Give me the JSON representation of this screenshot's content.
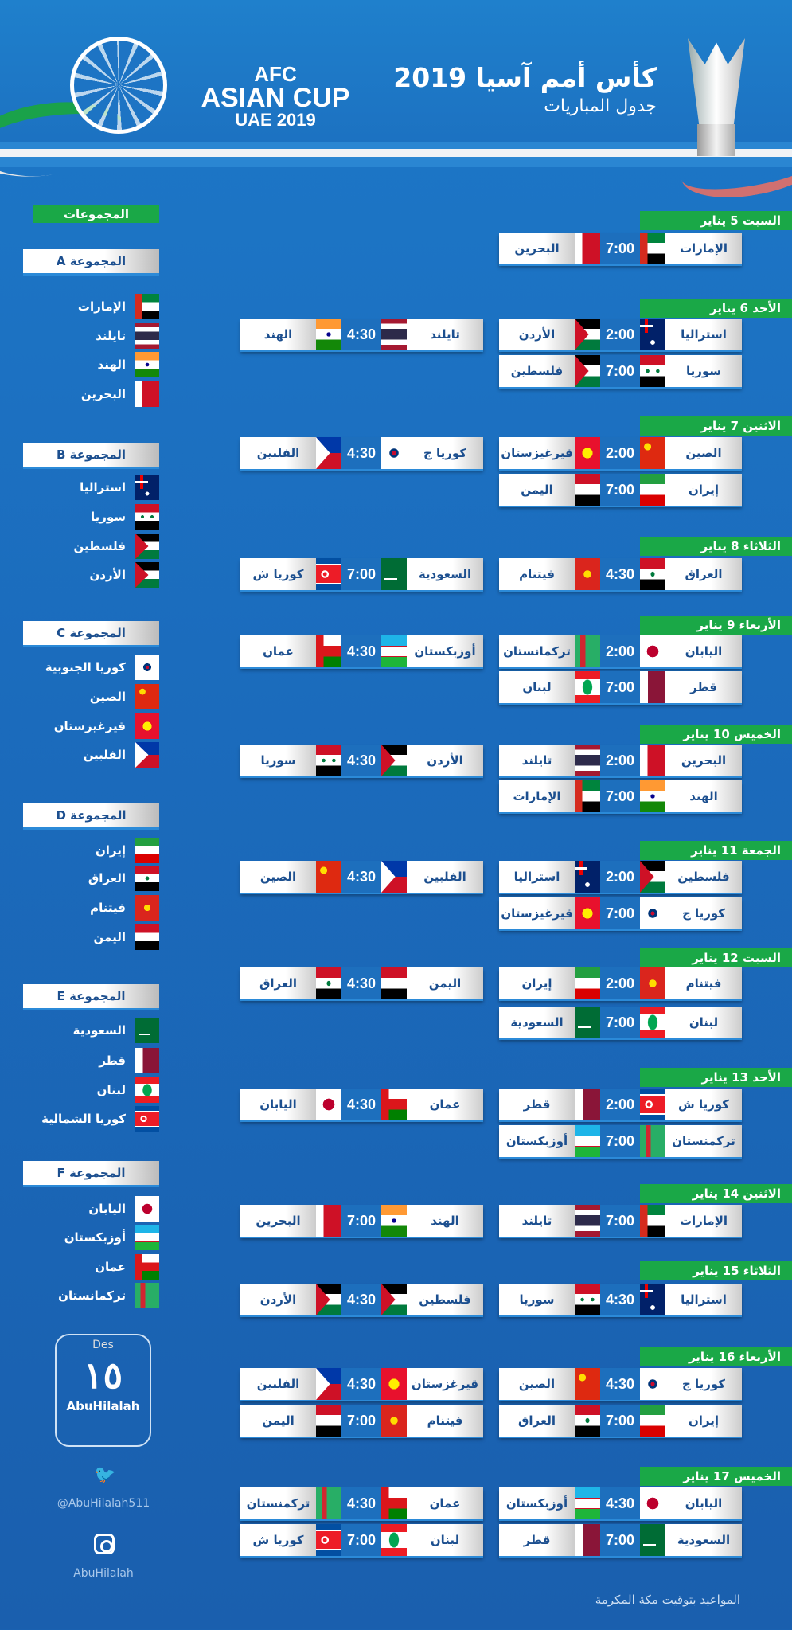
{
  "header": {
    "logo_line1": "AFC",
    "logo_line2": "ASIAN CUP",
    "logo_line3": "UAE 2019",
    "title": "كأس أمم آسيا 2019",
    "subtitle": "جدول المباريات"
  },
  "groups_title": "المجموعات",
  "groups": [
    {
      "label": "المجموعة A",
      "teams": [
        "الإمارات",
        "تايلند",
        "الهند",
        "البحرين"
      ]
    },
    {
      "label": "المجموعة B",
      "teams": [
        "استراليا",
        "سوريا",
        "فلسطين",
        "الأردن"
      ]
    },
    {
      "label": "المجموعة C",
      "teams": [
        "كوريا الجنوبية",
        "الصين",
        "قيرغيزستان",
        "الفلبين"
      ]
    },
    {
      "label": "المجموعة D",
      "teams": [
        "إيران",
        "العراق",
        "فيتنام",
        "اليمن"
      ]
    },
    {
      "label": "المجموعة E",
      "teams": [
        "السعودية",
        "قطر",
        "لبنان",
        "كوريا الشمالية"
      ]
    },
    {
      "label": "المجموعة F",
      "teams": [
        "اليابان",
        "أوزبكستان",
        "عمان",
        "تركمانستان"
      ]
    }
  ],
  "flags": {
    "الإمارات": "uae",
    "تايلند": "thailand",
    "الهند": "india",
    "البحرين": "bahrain",
    "استراليا": "australia",
    "سوريا": "syria",
    "فلسطين": "palestine",
    "الأردن": "jordan",
    "كوريا الجنوبية": "korea",
    "كوريا ج": "korea",
    "الصين": "china",
    "قيرغيزستان": "kyrgyzstan",
    "قيرغزستان": "kyrgyzstan",
    "الفلبين": "philippines",
    "إيران": "iran",
    "العراق": "iraq",
    "فيتنام": "vietnam",
    "اليمن": "yemen",
    "السعودية": "saudi",
    "قطر": "qatar",
    "لبنان": "lebanon",
    "كوريا الشمالية": "nkorea",
    "كوريا ش": "nkorea",
    "اليابان": "japan",
    "أوزبكستان": "uzbekistan",
    "عمان": "oman",
    "تركمانستان": "turkmenistan",
    "تركمنستان": "turkmenistan"
  },
  "days": [
    {
      "label": "السبت 5 يناير",
      "matches": [
        {
          "col": "right",
          "home": "الإمارات",
          "time": "7:00",
          "away": "البحرين"
        }
      ]
    },
    {
      "label": "الأحد 6 يناير",
      "matches": [
        {
          "col": "right",
          "home": "استراليا",
          "time": "2:00",
          "away": "الأردن"
        },
        {
          "col": "left",
          "home": "تايلند",
          "time": "4:30",
          "away": "الهند"
        },
        {
          "col": "right",
          "home": "سوريا",
          "time": "7:00",
          "away": "فلسطين"
        }
      ]
    },
    {
      "label": "الاثنين 7 يناير",
      "matches": [
        {
          "col": "right",
          "home": "الصين",
          "time": "2:00",
          "away": "قيرغيزستان"
        },
        {
          "col": "left",
          "home": "كوريا ج",
          "time": "4:30",
          "away": "الفلبين"
        },
        {
          "col": "right",
          "home": "إيران",
          "time": "7:00",
          "away": "اليمن"
        }
      ]
    },
    {
      "label": "الثلاثاء 8 يناير",
      "matches": [
        {
          "col": "right",
          "home": "العراق",
          "time": "4:30",
          "away": "فيتنام"
        },
        {
          "col": "left",
          "home": "السعودية",
          "time": "7:00",
          "away": "كوريا ش"
        }
      ]
    },
    {
      "label": "الأربعاء 9 يناير",
      "matches": [
        {
          "col": "right",
          "home": "اليابان",
          "time": "2:00",
          "away": "تركمانستان"
        },
        {
          "col": "left",
          "home": "أوزبكستان",
          "time": "4:30",
          "away": "عمان"
        },
        {
          "col": "right",
          "home": "قطر",
          "time": "7:00",
          "away": "لبنان"
        }
      ]
    },
    {
      "label": "الخميس 10 يناير",
      "matches": [
        {
          "col": "right",
          "home": "البحرين",
          "time": "2:00",
          "away": "تايلند"
        },
        {
          "col": "left",
          "home": "الأردن",
          "time": "4:30",
          "away": "سوريا"
        },
        {
          "col": "right",
          "home": "الهند",
          "time": "7:00",
          "away": "الإمارات"
        }
      ]
    },
    {
      "label": "الجمعة 11 يناير",
      "matches": [
        {
          "col": "right",
          "home": "فلسطين",
          "time": "2:00",
          "away": "استراليا"
        },
        {
          "col": "left",
          "home": "الفلبين",
          "time": "4:30",
          "away": "الصين"
        },
        {
          "col": "right",
          "home": "كوريا ج",
          "time": "7:00",
          "away": "قيرغيزستان"
        }
      ]
    },
    {
      "label": "السبت 12 يناير",
      "matches": [
        {
          "col": "right",
          "home": "فيتنام",
          "time": "2:00",
          "away": "إيران"
        },
        {
          "col": "left",
          "home": "اليمن",
          "time": "4:30",
          "away": "العراق"
        },
        {
          "col": "right",
          "home": "لبنان",
          "time": "7:00",
          "away": "السعودية"
        }
      ]
    },
    {
      "label": "الأحد 13 يناير",
      "matches": [
        {
          "col": "right",
          "home": "كوريا ش",
          "time": "2:00",
          "away": "قطر"
        },
        {
          "col": "left",
          "home": "عمان",
          "time": "4:30",
          "away": "اليابان"
        },
        {
          "col": "right",
          "home": "تركمنستان",
          "time": "7:00",
          "away": "أوزبكستان"
        }
      ]
    },
    {
      "label": "الاثنين 14 يناير",
      "matches": [
        {
          "col": "right",
          "home": "الإمارات",
          "time": "7:00",
          "away": "تايلند"
        },
        {
          "col": "left",
          "home": "الهند",
          "time": "7:00",
          "away": "البحرين"
        }
      ]
    },
    {
      "label": "الثلاثاء 15 يناير",
      "matches": [
        {
          "col": "right",
          "home": "استراليا",
          "time": "4:30",
          "away": "سوريا"
        },
        {
          "col": "left",
          "home": "فلسطين",
          "time": "4:30",
          "away": "الأردن"
        }
      ]
    },
    {
      "label": "الأربعاء 16 يناير",
      "matches": [
        {
          "col": "right",
          "home": "كوريا ج",
          "time": "4:30",
          "away": "الصين"
        },
        {
          "col": "left",
          "home": "قيرغزستان",
          "time": "4:30",
          "away": "الفلبين"
        },
        {
          "col": "right",
          "home": "إيران",
          "time": "7:00",
          "away": "العراق"
        },
        {
          "col": "left",
          "home": "فيتنام",
          "time": "7:00",
          "away": "اليمن"
        }
      ]
    },
    {
      "label": "الخميس 17 يناير",
      "matches": [
        {
          "col": "right",
          "home": "اليابان",
          "time": "4:30",
          "away": "أوزبكستان"
        },
        {
          "col": "left",
          "home": "عمان",
          "time": "4:30",
          "away": "تركمنستان"
        },
        {
          "col": "right",
          "home": "السعودية",
          "time": "7:00",
          "away": "قطر"
        },
        {
          "col": "left",
          "home": "لبنان",
          "time": "7:00",
          "away": "كوريا ش"
        }
      ]
    }
  ],
  "footer": {
    "designer_prefix": "Des",
    "designer_name": "AbuHilalah",
    "twitter_handle": "@AbuHilalah511",
    "instagram_handle": "AbuHilalah",
    "note": "المواعيد بتوقيت مكة المكرمة"
  }
}
